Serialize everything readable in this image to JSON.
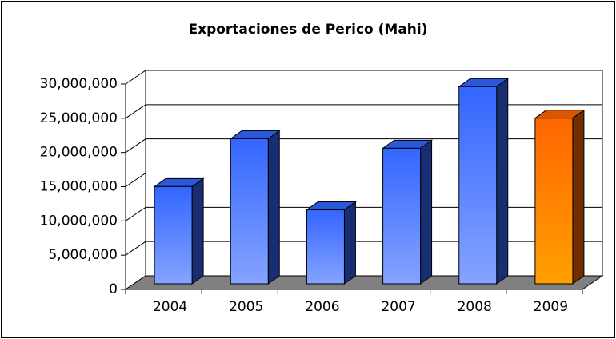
{
  "chart_data": {
    "type": "bar3d",
    "title": "Exportaciones de Perico (Mahi)",
    "categories": [
      "2004",
      "2005",
      "2006",
      "2007",
      "2008",
      "2009"
    ],
    "values": [
      14200000,
      21200000,
      10800000,
      19800000,
      28800000,
      24200000
    ],
    "colors": [
      "#3366ff",
      "#3366ff",
      "#3366ff",
      "#3366ff",
      "#3366ff",
      "#ff6600"
    ],
    "ylim": [
      0,
      30000000
    ],
    "yticks": [
      0,
      {
        "value": 5000000,
        "label": "5,000,000"
      },
      {
        "value": 10000000,
        "label": "10,000,000"
      },
      {
        "value": 15000000,
        "label": "15,000,000"
      },
      {
        "value": 20000000,
        "label": "20,000,000"
      },
      {
        "value": 25000000,
        "label": "25,000,000"
      },
      {
        "value": 30000000,
        "label": "30,000,000"
      }
    ],
    "grid": true
  }
}
